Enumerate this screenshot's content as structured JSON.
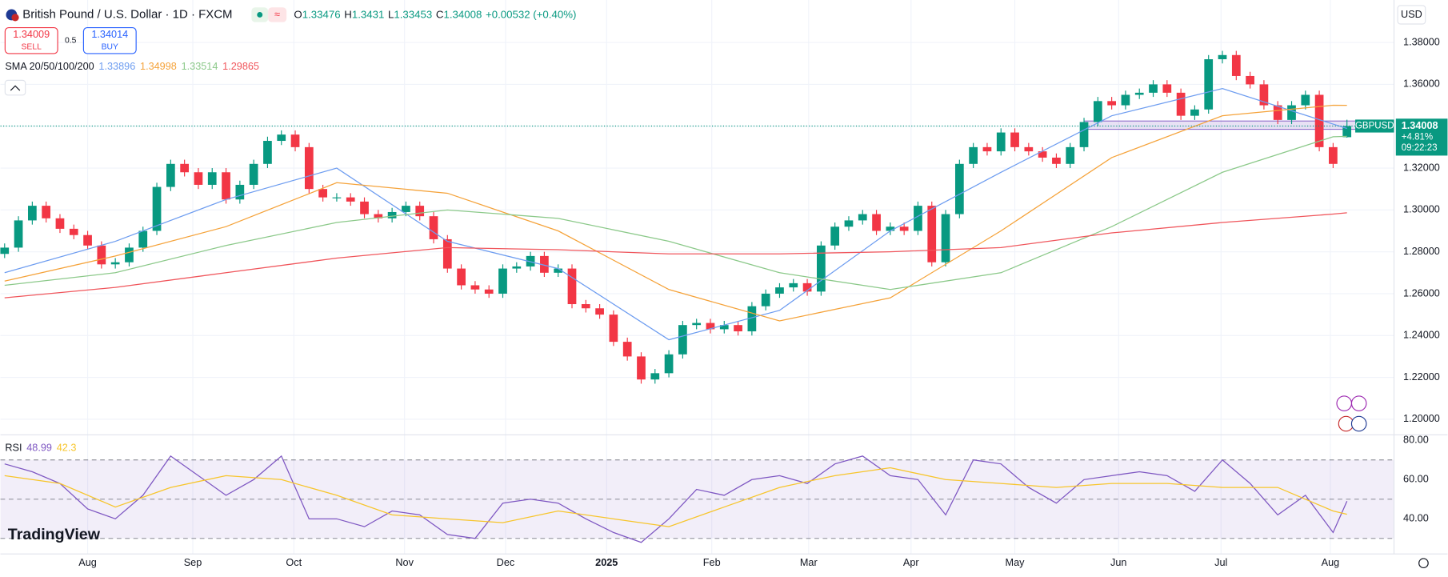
{
  "header": {
    "title": "British Pound / U.S. Dollar · 1D · FXCM",
    "o_label": "O",
    "h_label": "H",
    "l_label": "L",
    "c_label": "C",
    "change": "+0.00532 (+0.40%)",
    "sell_price": "1.34009",
    "sell_label": "SELL",
    "spread": "0.5",
    "buy_price": "1.34014",
    "buy_label": "BUY",
    "currency": "USD",
    "logo": "TradingView"
  },
  "price_tag": {
    "symbol": "GBPUSD",
    "change_pct": "+4.81%",
    "countdown": "09:22:23"
  },
  "chart_data": [
    {
      "type": "candlestick",
      "indicator_label": "SMA 20/50/100/200",
      "up_color": "#089981",
      "down_color": "#f23645",
      "open": [
        1.279,
        1.282,
        1.295,
        1.302,
        1.296,
        1.291,
        1.288,
        1.283,
        1.274,
        1.275,
        1.282,
        1.29,
        1.311,
        1.322,
        1.318,
        1.312,
        1.318,
        1.305,
        1.312,
        1.322,
        1.333,
        1.336,
        1.33,
        1.31,
        1.306,
        1.306,
        1.304,
        1.298,
        1.296,
        1.299,
        1.302,
        1.297,
        1.286,
        1.272,
        1.264,
        1.262,
        1.26,
        1.272,
        1.273,
        1.278,
        1.27,
        1.272,
        1.255,
        1.253,
        1.25,
        1.237,
        1.23,
        1.219,
        1.222,
        1.231,
        1.245,
        1.246,
        1.243,
        1.245,
        1.242,
        1.254,
        1.26,
        1.263,
        1.265,
        1.261,
        1.283,
        1.292,
        1.295,
        1.298,
        1.29,
        1.292,
        1.29,
        1.302,
        1.275,
        1.298,
        1.322,
        1.33,
        1.328,
        1.337,
        1.33,
        1.328,
        1.325,
        1.322,
        1.33,
        1.342,
        1.352,
        1.35,
        1.355,
        1.356,
        1.36,
        1.356,
        1.345,
        1.348,
        1.372,
        1.374,
        1.364,
        1.36,
        1.35,
        1.343,
        1.35,
        1.355,
        1.33,
        1.33476
      ],
      "high": [
        1.284,
        1.297,
        1.304,
        1.304,
        1.298,
        1.293,
        1.29,
        1.285,
        1.277,
        1.284,
        1.292,
        1.313,
        1.324,
        1.324,
        1.32,
        1.32,
        1.32,
        1.314,
        1.324,
        1.335,
        1.338,
        1.338,
        1.332,
        1.312,
        1.308,
        1.308,
        1.306,
        1.3,
        1.301,
        1.304,
        1.304,
        1.299,
        1.288,
        1.274,
        1.266,
        1.264,
        1.274,
        1.275,
        1.28,
        1.28,
        1.274,
        1.274,
        1.257,
        1.255,
        1.252,
        1.239,
        1.232,
        1.224,
        1.233,
        1.247,
        1.248,
        1.248,
        1.247,
        1.247,
        1.256,
        1.262,
        1.265,
        1.267,
        1.267,
        1.285,
        1.294,
        1.297,
        1.3,
        1.3,
        1.294,
        1.294,
        1.304,
        1.304,
        1.3,
        1.324,
        1.332,
        1.332,
        1.339,
        1.339,
        1.332,
        1.33,
        1.327,
        1.332,
        1.344,
        1.354,
        1.354,
        1.357,
        1.358,
        1.362,
        1.362,
        1.358,
        1.35,
        1.374,
        1.376,
        1.376,
        1.366,
        1.362,
        1.352,
        1.352,
        1.357,
        1.357,
        1.332,
        1.3431
      ],
      "low": [
        1.277,
        1.28,
        1.293,
        1.294,
        1.289,
        1.286,
        1.281,
        1.272,
        1.272,
        1.273,
        1.28,
        1.288,
        1.309,
        1.316,
        1.31,
        1.31,
        1.303,
        1.303,
        1.31,
        1.32,
        1.331,
        1.328,
        1.308,
        1.304,
        1.304,
        1.302,
        1.296,
        1.294,
        1.294,
        1.297,
        1.295,
        1.284,
        1.27,
        1.262,
        1.26,
        1.258,
        1.258,
        1.27,
        1.271,
        1.268,
        1.268,
        1.253,
        1.251,
        1.248,
        1.235,
        1.228,
        1.217,
        1.217,
        1.22,
        1.229,
        1.243,
        1.241,
        1.241,
        1.24,
        1.24,
        1.252,
        1.258,
        1.261,
        1.259,
        1.259,
        1.281,
        1.29,
        1.293,
        1.288,
        1.288,
        1.288,
        1.288,
        1.273,
        1.273,
        1.296,
        1.32,
        1.326,
        1.326,
        1.328,
        1.326,
        1.323,
        1.32,
        1.32,
        1.328,
        1.34,
        1.348,
        1.348,
        1.353,
        1.354,
        1.354,
        1.343,
        1.343,
        1.346,
        1.37,
        1.362,
        1.358,
        1.348,
        1.341,
        1.341,
        1.348,
        1.328,
        1.32,
        1.33453
      ],
      "close": [
        1.282,
        1.295,
        1.302,
        1.296,
        1.291,
        1.288,
        1.283,
        1.274,
        1.275,
        1.282,
        1.29,
        1.311,
        1.322,
        1.318,
        1.312,
        1.318,
        1.305,
        1.312,
        1.322,
        1.333,
        1.336,
        1.33,
        1.31,
        1.306,
        1.306,
        1.304,
        1.298,
        1.296,
        1.299,
        1.302,
        1.297,
        1.286,
        1.272,
        1.264,
        1.262,
        1.26,
        1.272,
        1.273,
        1.278,
        1.27,
        1.272,
        1.255,
        1.253,
        1.25,
        1.237,
        1.23,
        1.219,
        1.222,
        1.231,
        1.245,
        1.246,
        1.243,
        1.245,
        1.242,
        1.254,
        1.26,
        1.263,
        1.265,
        1.261,
        1.283,
        1.292,
        1.295,
        1.298,
        1.29,
        1.292,
        1.29,
        1.302,
        1.275,
        1.298,
        1.322,
        1.33,
        1.328,
        1.337,
        1.33,
        1.328,
        1.325,
        1.322,
        1.33,
        1.342,
        1.352,
        1.35,
        1.355,
        1.356,
        1.36,
        1.356,
        1.345,
        1.348,
        1.372,
        1.374,
        1.364,
        1.36,
        1.35,
        1.343,
        1.35,
        1.355,
        1.33,
        1.322,
        1.34008
      ],
      "series": [
        {
          "color": "#6e9df0",
          "x": [
            0,
            8,
            16,
            24,
            32,
            40,
            48,
            56,
            64,
            72,
            80,
            88,
            96,
            97
          ],
          "values": [
            1.27,
            1.285,
            1.305,
            1.32,
            1.285,
            1.272,
            1.238,
            1.252,
            1.29,
            1.318,
            1.345,
            1.358,
            1.341,
            1.33896
          ]
        },
        {
          "color": "#f5a33b",
          "x": [
            0,
            8,
            16,
            24,
            32,
            40,
            48,
            56,
            64,
            72,
            80,
            88,
            96,
            97
          ],
          "values": [
            1.266,
            1.278,
            1.292,
            1.313,
            1.308,
            1.29,
            1.262,
            1.247,
            1.258,
            1.29,
            1.325,
            1.345,
            1.35,
            1.34998
          ]
        },
        {
          "color": "#8cc98a",
          "x": [
            0,
            8,
            16,
            24,
            32,
            40,
            48,
            56,
            64,
            72,
            80,
            88,
            96,
            97
          ],
          "values": [
            1.264,
            1.27,
            1.283,
            1.294,
            1.3,
            1.296,
            1.285,
            1.27,
            1.262,
            1.27,
            1.292,
            1.318,
            1.335,
            1.33514
          ]
        },
        {
          "color": "#f0565c",
          "x": [
            0,
            8,
            16,
            24,
            32,
            40,
            48,
            56,
            64,
            72,
            80,
            88,
            96,
            97
          ],
          "values": [
            1.258,
            1.263,
            1.27,
            1.277,
            1.282,
            1.281,
            1.279,
            1.279,
            1.28,
            1.282,
            1.289,
            1.294,
            1.298,
            1.29865
          ]
        }
      ],
      "xlim": [
        -0.3,
        100.4
      ],
      "ylim": [
        1.193,
        1.4003
      ],
      "yticks": [
        {
          "value": 1.38,
          "label": "1.38000"
        },
        {
          "value": 1.36,
          "label": "1.36000"
        },
        {
          "value": 1.34,
          "label": "1.34000"
        },
        {
          "value": 1.32,
          "label": "1.32000"
        },
        {
          "value": 1.3,
          "label": "1.30000"
        },
        {
          "value": 1.28,
          "label": "1.28000"
        },
        {
          "value": 1.26,
          "label": "1.26000"
        },
        {
          "value": 1.24,
          "label": "1.24000"
        },
        {
          "value": 1.22,
          "label": "1.22000"
        },
        {
          "value": 1.2,
          "label": "1.20000"
        }
      ],
      "xticks": [
        {
          "value": 6.0,
          "label": "Aug"
        },
        {
          "value": 13.6,
          "label": "Sep"
        },
        {
          "value": 20.9,
          "label": "Oct"
        },
        {
          "value": 28.9,
          "label": "Nov"
        },
        {
          "value": 36.2,
          "label": "Dec"
        },
        {
          "value": 43.5,
          "label": "2025"
        },
        {
          "value": 51.1,
          "label": "Feb"
        },
        {
          "value": 58.1,
          "label": "Mar"
        },
        {
          "value": 65.5,
          "label": "Apr"
        },
        {
          "value": 73.0,
          "label": "May"
        },
        {
          "value": 80.5,
          "label": "Jun"
        },
        {
          "value": 87.9,
          "label": "Jul"
        },
        {
          "value": 95.8,
          "label": "Aug"
        }
      ],
      "grid": true
    },
    {
      "type": "line",
      "indicator_label": "RSI",
      "series": [
        {
          "color": "#7e57c2",
          "x": [
            0,
            2,
            4,
            6,
            8,
            10,
            12,
            14,
            16,
            18,
            20,
            22,
            24,
            26,
            28,
            30,
            32,
            34,
            36,
            38,
            40,
            42,
            44,
            46,
            48,
            50,
            52,
            54,
            56,
            58,
            60,
            62,
            64,
            66,
            68,
            70,
            72,
            74,
            76,
            78,
            80,
            82,
            84,
            86,
            88,
            90,
            92,
            94,
            96,
            97
          ],
          "values": [
            68,
            64,
            58,
            45,
            40,
            52,
            72,
            62,
            52,
            60,
            72,
            40,
            40,
            36,
            44,
            42,
            32,
            30,
            48,
            50,
            48,
            40,
            33,
            28,
            40,
            55,
            52,
            60,
            62,
            58,
            68,
            72,
            62,
            60,
            42,
            70,
            68,
            56,
            48,
            60,
            62,
            64,
            62,
            54,
            70,
            58,
            42,
            52,
            33,
            48.99
          ]
        },
        {
          "color": "#f7c52b",
          "x": [
            0,
            4,
            8,
            12,
            16,
            20,
            24,
            28,
            32,
            36,
            40,
            44,
            48,
            52,
            56,
            60,
            64,
            68,
            72,
            76,
            80,
            84,
            88,
            92,
            96,
            97
          ],
          "values": [
            62,
            58,
            46,
            56,
            62,
            60,
            52,
            42,
            40,
            38,
            44,
            40,
            36,
            46,
            56,
            62,
            66,
            60,
            58,
            56,
            58,
            58,
            56,
            56,
            44,
            42.3
          ]
        }
      ],
      "levels": [
        70,
        50,
        30
      ],
      "xlim": [
        -0.3,
        100.4
      ],
      "ylim": [
        22.1,
        82.35
      ],
      "yticks": [
        {
          "value": 80,
          "label": "80.00"
        },
        {
          "value": 60,
          "label": "60.00"
        },
        {
          "value": 40,
          "label": "40.00"
        }
      ],
      "grid": true
    }
  ]
}
